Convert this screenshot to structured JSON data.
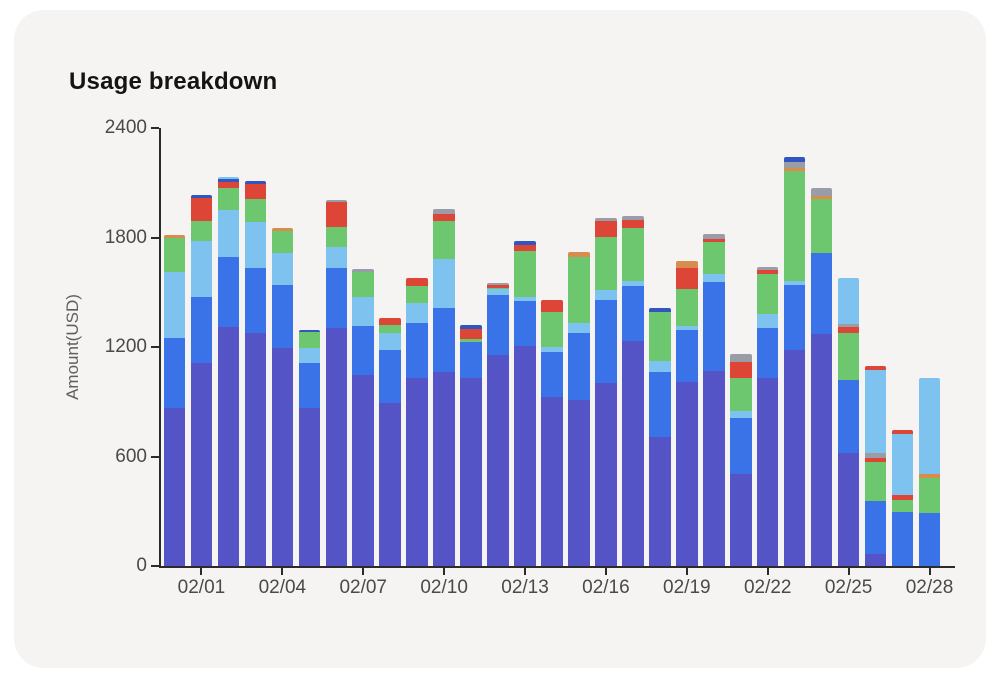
{
  "page": {
    "title": "Usage breakdown",
    "background": "#ffffff",
    "card_background": "#f5f4f2"
  },
  "chart_data": {
    "type": "bar",
    "stacked": true,
    "title": "Usage breakdown",
    "xlabel": "",
    "ylabel": "Amount(USD)",
    "ylim": [
      0,
      2400
    ],
    "y_ticks": [
      0,
      600,
      1200,
      1800,
      2400
    ],
    "grid": false,
    "legend_position": "none",
    "categories": [
      "01/31",
      "02/01",
      "02/02",
      "02/03",
      "02/04",
      "02/05",
      "02/06",
      "02/07",
      "02/08",
      "02/09",
      "02/10",
      "02/11",
      "02/12",
      "02/13",
      "02/14",
      "02/15",
      "02/16",
      "02/17",
      "02/18",
      "02/19",
      "02/20",
      "02/21",
      "02/22",
      "02/23",
      "02/24",
      "02/25",
      "02/26",
      "02/27",
      "02/28"
    ],
    "x_labeled_indices": [
      1,
      4,
      7,
      10,
      13,
      16,
      19,
      22,
      25,
      28
    ],
    "x_tick_labels": [
      "02/01",
      "02/04",
      "02/07",
      "02/10",
      "02/13",
      "02/16",
      "02/19",
      "02/22",
      "02/25",
      "02/28"
    ],
    "series": [
      {
        "name": "indigo",
        "color": "#5554c6",
        "values": [
          866,
          1112,
          1309,
          1277,
          1194,
          866,
          1304,
          1046,
          893,
          1030,
          1063,
          1030,
          1156,
          1205,
          926,
          910,
          1003,
          1233,
          707,
          1008,
          1068,
          504,
          1030,
          1183,
          1271,
          619,
          66,
          0,
          0
        ]
      },
      {
        "name": "blue",
        "color": "#3a73e8",
        "values": [
          383,
          362,
          384,
          356,
          345,
          246,
          329,
          269,
          290,
          301,
          351,
          195,
          330,
          247,
          246,
          367,
          454,
          301,
          356,
          285,
          488,
          307,
          274,
          357,
          444,
          400,
          290,
          296,
          290
        ]
      },
      {
        "name": "sky",
        "color": "#7ec3ef",
        "values": [
          362,
          307,
          257,
          252,
          175,
          82,
          115,
          159,
          94,
          110,
          268,
          0,
          30,
          22,
          28,
          54,
          55,
          27,
          60,
          22,
          44,
          38,
          77,
          20,
          0,
          0,
          0,
          0,
          0
        ]
      },
      {
        "name": "green",
        "color": "#6cc76e",
        "values": [
          186,
          109,
          121,
          126,
          120,
          88,
          110,
          137,
          43,
          93,
          208,
          20,
          10,
          252,
          192,
          362,
          291,
          291,
          269,
          203,
          175,
          181,
          219,
          604,
          296,
          258,
          214,
          66,
          192
        ]
      },
      {
        "name": "red",
        "color": "#dd4537",
        "values": [
          0,
          126,
          33,
          82,
          0,
          0,
          137,
          0,
          39,
          44,
          39,
          55,
          15,
          33,
          65,
          0,
          87,
          44,
          0,
          115,
          17,
          88,
          22,
          0,
          0,
          33,
          22,
          27,
          0
        ]
      },
      {
        "name": "orange",
        "color": "#d88c4e",
        "values": [
          15,
          0,
          0,
          0,
          16,
          0,
          0,
          0,
          0,
          0,
          0,
          0,
          0,
          0,
          0,
          27,
          0,
          0,
          0,
          38,
          0,
          0,
          0,
          17,
          16,
          0,
          0,
          0,
          22
        ]
      },
      {
        "name": "gray",
        "color": "#989da8",
        "values": [
          0,
          0,
          0,
          0,
          0,
          0,
          10,
          16,
          0,
          0,
          27,
          0,
          10,
          0,
          0,
          0,
          17,
          22,
          0,
          0,
          27,
          44,
          16,
          33,
          44,
          16,
          27,
          0,
          0
        ]
      },
      {
        "name": "darkblue",
        "color": "#3156c2",
        "values": [
          0,
          17,
          15,
          16,
          0,
          11,
          0,
          0,
          0,
          0,
          0,
          20,
          0,
          22,
          0,
          0,
          0,
          0,
          22,
          0,
          0,
          0,
          0,
          27,
          0,
          0,
          0,
          0,
          0
        ]
      },
      {
        "name": "sky2",
        "color": "#7ec3ef",
        "values": [
          0,
          0,
          12,
          0,
          0,
          0,
          0,
          0,
          0,
          0,
          0,
          0,
          0,
          0,
          0,
          0,
          0,
          0,
          0,
          0,
          0,
          0,
          0,
          0,
          0,
          252,
          455,
          334,
          526
        ]
      },
      {
        "name": "red2",
        "color": "#dd4537",
        "values": [
          0,
          0,
          0,
          0,
          0,
          0,
          0,
          0,
          0,
          0,
          0,
          0,
          0,
          0,
          0,
          0,
          0,
          0,
          0,
          0,
          0,
          0,
          0,
          0,
          0,
          0,
          22,
          22,
          0
        ]
      }
    ]
  }
}
